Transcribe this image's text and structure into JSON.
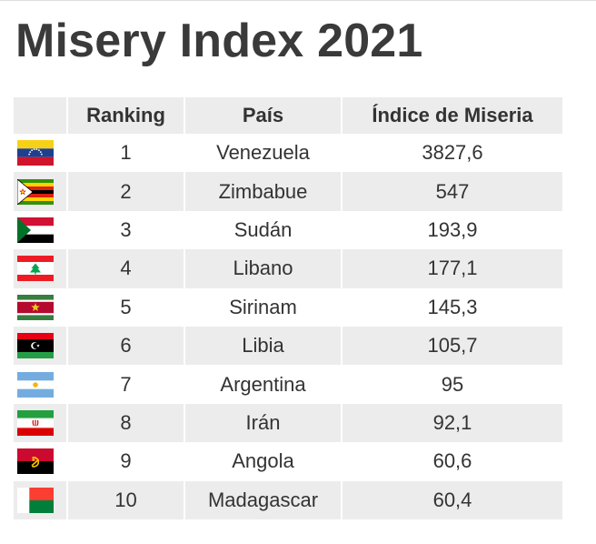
{
  "chart_data": {
    "type": "table",
    "title": "Misery Index 2021",
    "columns": [
      "",
      "Ranking",
      "País",
      "Índice de Miseria"
    ],
    "rows": [
      {
        "flag": "venezuela-flag-icon",
        "rank": "1",
        "country": "Venezuela",
        "index": "3827,6"
      },
      {
        "flag": "zimbabwe-flag-icon",
        "rank": "2",
        "country": "Zimbabue",
        "index": "547"
      },
      {
        "flag": "sudan-flag-icon",
        "rank": "3",
        "country": "Sudán",
        "index": "193,9"
      },
      {
        "flag": "lebanon-flag-icon",
        "rank": "4",
        "country": "Libano",
        "index": "177,1"
      },
      {
        "flag": "suriname-flag-icon",
        "rank": "5",
        "country": "Sirinam",
        "index": "145,3"
      },
      {
        "flag": "libya-flag-icon",
        "rank": "6",
        "country": "Libia",
        "index": "105,7"
      },
      {
        "flag": "argentina-flag-icon",
        "rank": "7",
        "country": "Argentina",
        "index": "95"
      },
      {
        "flag": "iran-flag-icon",
        "rank": "8",
        "country": "Irán",
        "index": "92,1"
      },
      {
        "flag": "angola-flag-icon",
        "rank": "9",
        "country": "Angola",
        "index": "60,6"
      },
      {
        "flag": "madagascar-flag-icon",
        "rank": "10",
        "country": "Madagascar",
        "index": "60,4"
      }
    ]
  }
}
